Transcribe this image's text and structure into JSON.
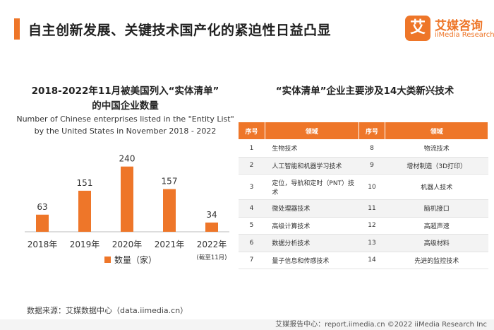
{
  "page": {
    "title": "自主创新发展、关键技术国产化的紧迫性日益凸显",
    "logo_mark": "艾",
    "logo_cn": "艾媒咨询",
    "logo_en": "iiMedia Research"
  },
  "left_panel": {
    "title_line1": "2018-2022年11月被美国列入“实体清单”",
    "title_line2": "的中国企业数量",
    "subtitle_line1": "Number of Chinese enterprises listed in the \"Entity List\"",
    "subtitle_line2": "by the United States in November 2018 - 2022"
  },
  "chart_data": {
    "type": "bar",
    "title": "2018-2022年11月被美国列入“实体清单”的中国企业数量",
    "categories": [
      "2018年",
      "2019年",
      "2020年",
      "2021年",
      "2022年"
    ],
    "category_notes": [
      "",
      "",
      "",
      "",
      "(截至11月)"
    ],
    "series": [
      {
        "name": "数量（家）",
        "values": [
          63,
          151,
          240,
          157,
          34
        ]
      }
    ],
    "ylim": [
      0,
      260
    ],
    "grid": false,
    "legend": "bottom",
    "color": "#ee7629"
  },
  "right_panel": {
    "title": "“实体清单”企业主要涉及14大类新兴技术",
    "headers": [
      "序号",
      "领域",
      "序号",
      "领域"
    ],
    "rows": [
      {
        "n1": "1",
        "f1": "生物技术",
        "n2": "8",
        "f2": "物流技术"
      },
      {
        "n1": "2",
        "f1": "人工智能和机器学习技术",
        "n2": "9",
        "f2": "增材制造（3D打印）"
      },
      {
        "n1": "3",
        "f1": "定位，导航和定时（PNT）技术",
        "n2": "10",
        "f2": "机器人技术"
      },
      {
        "n1": "4",
        "f1": "微处理器技术",
        "n2": "11",
        "f2": "脑机接口"
      },
      {
        "n1": "5",
        "f1": "高级计算技术",
        "n2": "12",
        "f2": "高超声速"
      },
      {
        "n1": "6",
        "f1": "数据分析技术",
        "n2": "13",
        "f2": "高级材料"
      },
      {
        "n1": "7",
        "f1": "量子信息和传感技术",
        "n2": "14",
        "f2": "先进的监控技术"
      }
    ]
  },
  "source": "数据来源：艾媒数据中心（data.iimedia.cn）",
  "footer": "艾媒报告中心：report.iimedia.cn  ©2022  iiMedia Research Inc"
}
